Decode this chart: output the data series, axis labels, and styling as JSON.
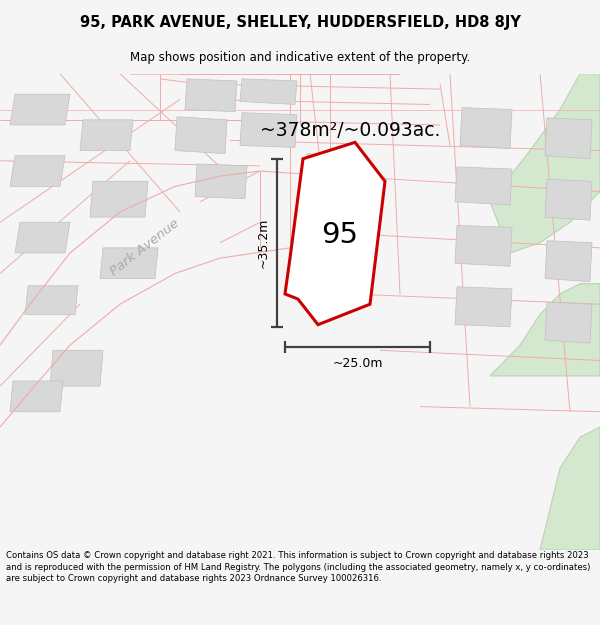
{
  "title_line1": "95, PARK AVENUE, SHELLEY, HUDDERSFIELD, HD8 8JY",
  "title_line2": "Map shows position and indicative extent of the property.",
  "area_text": "~378m²/~0.093ac.",
  "label_95": "95",
  "dim_vertical": "~35.2m",
  "dim_horizontal": "~25.0m",
  "street_label": "Park Avenue",
  "footer": "Contains OS data © Crown copyright and database right 2021. This information is subject to Crown copyright and database rights 2023 and is reproduced with the permission of HM Land Registry. The polygons (including the associated geometry, namely x, y co-ordinates) are subject to Crown copyright and database rights 2023 Ordnance Survey 100026316.",
  "bg_color": "#f5f5f5",
  "map_bg": "#ffffff",
  "plot_fill": "#ffffff",
  "plot_edge": "#cc0000",
  "road_lines": "#f0aaaa",
  "building_fill": "#d8d8d8",
  "building_edge": "#c0c0c0",
  "green_fill": "#d4e8d0",
  "green_edge": "#b8d4b4",
  "dark_line": "#404040"
}
